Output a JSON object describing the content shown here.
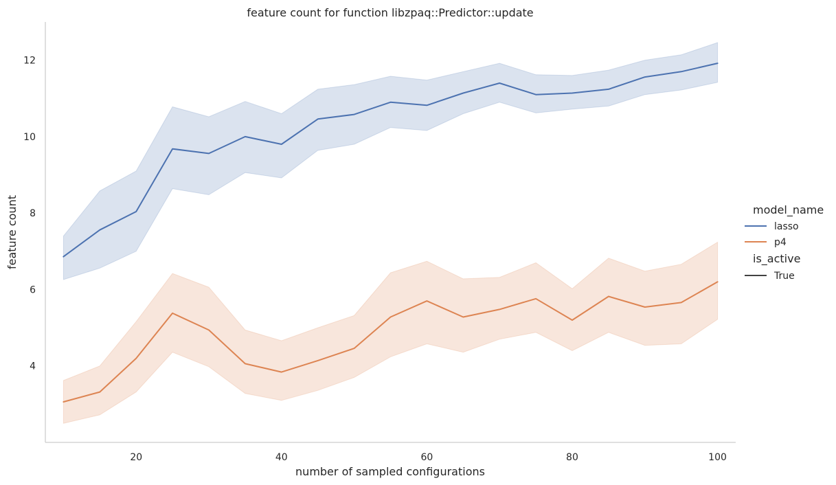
{
  "chart_data": {
    "type": "line",
    "title": "feature count for function libzpaq::Predictor::update",
    "xlabel": "number of sampled configurations",
    "ylabel": "feature count",
    "xlim": [
      7.5,
      102.5
    ],
    "ylim": [
      2.0,
      13.0
    ],
    "xticks": [
      20,
      40,
      60,
      80,
      100
    ],
    "yticks": [
      4,
      6,
      8,
      10,
      12
    ],
    "grid": false,
    "legend": {
      "placement": "right",
      "hue_title": "model_name",
      "style_title": "is_active",
      "style_entries": [
        "True"
      ]
    },
    "x": [
      10,
      15,
      20,
      25,
      30,
      35,
      40,
      45,
      50,
      55,
      60,
      65,
      70,
      75,
      80,
      85,
      90,
      95,
      100
    ],
    "series": [
      {
        "name": "lasso",
        "color": "#4c72b0",
        "values": [
          6.86,
          7.56,
          8.04,
          9.68,
          9.56,
          10.0,
          9.8,
          10.46,
          10.58,
          10.9,
          10.82,
          11.14,
          11.4,
          11.1,
          11.14,
          11.24,
          11.56,
          11.7,
          11.92
        ],
        "ci_low": [
          6.26,
          6.56,
          7.0,
          8.64,
          8.48,
          9.06,
          8.92,
          9.64,
          9.8,
          10.24,
          10.16,
          10.6,
          10.9,
          10.62,
          10.72,
          10.8,
          11.1,
          11.22,
          11.42
        ],
        "ci_high": [
          7.4,
          8.58,
          9.1,
          10.78,
          10.52,
          10.92,
          10.6,
          11.24,
          11.36,
          11.58,
          11.48,
          11.7,
          11.92,
          11.62,
          11.6,
          11.74,
          12.0,
          12.14,
          12.46
        ]
      },
      {
        "name": "p4",
        "color": "#dd8452",
        "values": [
          3.06,
          3.32,
          4.2,
          5.38,
          4.94,
          4.06,
          3.84,
          4.14,
          4.46,
          5.28,
          5.7,
          5.28,
          5.48,
          5.76,
          5.2,
          5.82,
          5.54,
          5.66,
          6.2
        ],
        "ci_low": [
          2.5,
          2.72,
          3.32,
          4.36,
          3.98,
          3.28,
          3.1,
          3.36,
          3.7,
          4.24,
          4.58,
          4.36,
          4.7,
          4.88,
          4.4,
          4.88,
          4.54,
          4.58,
          5.22
        ],
        "ci_high": [
          3.62,
          4.0,
          5.16,
          6.42,
          6.06,
          4.94,
          4.66,
          5.0,
          5.32,
          6.44,
          6.74,
          6.28,
          6.32,
          6.7,
          6.02,
          6.82,
          6.48,
          6.66,
          7.24
        ]
      }
    ]
  }
}
